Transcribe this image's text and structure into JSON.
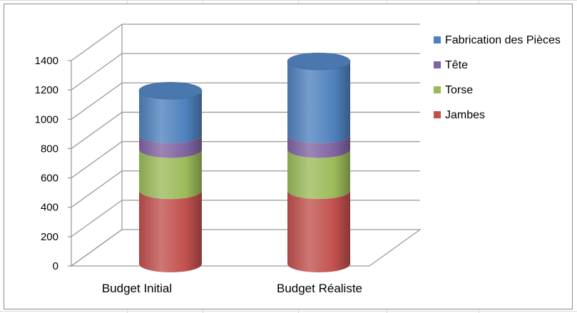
{
  "chart_data": {
    "type": "bar",
    "stacked": true,
    "shape": "cylinder-3d",
    "categories": [
      "Budget Initial",
      "Budget Réaliste"
    ],
    "series": [
      {
        "name": "Jambes",
        "values": [
          500,
          500
        ],
        "color": "#C0504D"
      },
      {
        "name": "Torse",
        "values": [
          280,
          280
        ],
        "color": "#9BBB59"
      },
      {
        "name": "Tête",
        "values": [
          100,
          100
        ],
        "color": "#8064A2"
      },
      {
        "name": "Fabrication des Pièces",
        "values": [
          300,
          500
        ],
        "color": "#4F81BD"
      }
    ],
    "yticks": [
      "0",
      "200",
      "400",
      "600",
      "800",
      "1000",
      "1200",
      "1400"
    ],
    "ylim": [
      0,
      1400
    ],
    "grid": true,
    "legend": "right"
  },
  "colors": {
    "gridline": "#9A9A9A",
    "border": "#8C8C8C",
    "sheet_grid": "#D9D9D9"
  }
}
